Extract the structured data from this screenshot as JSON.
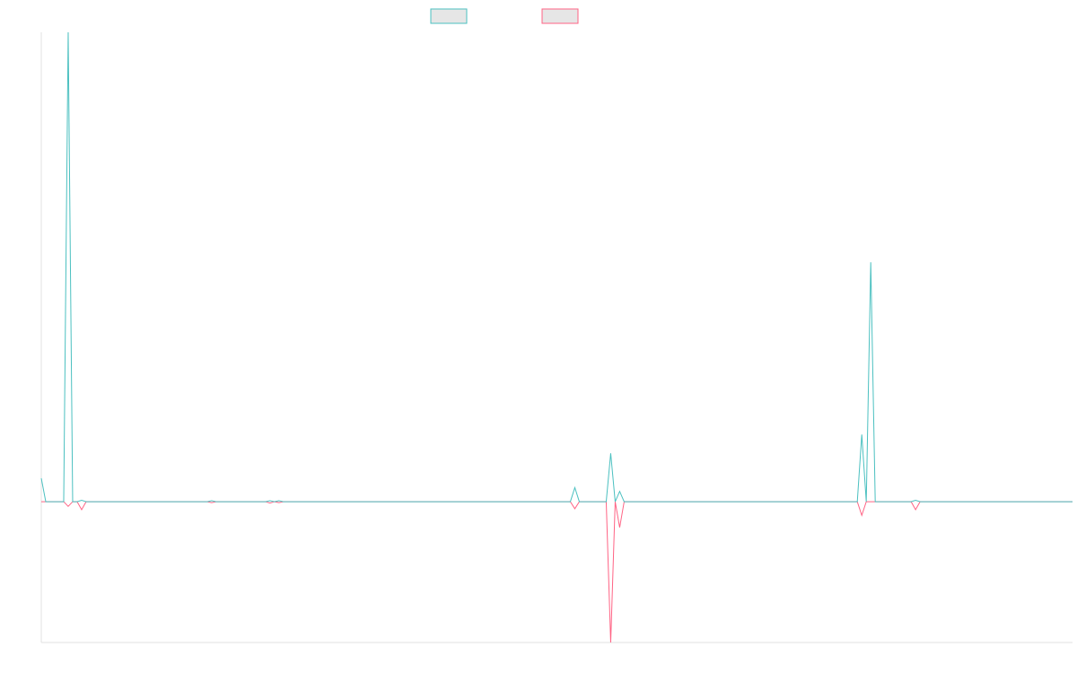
{
  "chart_data": {
    "type": "line",
    "x": [
      0,
      1,
      5,
      6,
      7,
      8,
      9,
      10,
      37,
      38,
      39,
      50,
      51,
      52,
      53,
      54,
      118,
      119,
      120,
      126,
      127,
      128,
      129,
      130,
      182,
      183,
      184,
      185,
      186,
      194,
      195,
      196,
      230
    ],
    "xlim": [
      0,
      230
    ],
    "ylim": [
      -30,
      100
    ],
    "series": [
      {
        "color": "#4bc0c0",
        "values": [
          5,
          0,
          0,
          100,
          0,
          0,
          0.3,
          0,
          0,
          0.2,
          0,
          0,
          0.2,
          0,
          0.2,
          0,
          0,
          3,
          0,
          0,
          10.3,
          0,
          2.2,
          0,
          0,
          14.3,
          0,
          51,
          0,
          0,
          0.3,
          0,
          0
        ]
      },
      {
        "color": "#ff6384",
        "values": [
          0,
          0,
          0,
          -1,
          0,
          0,
          -1.7,
          0,
          0,
          -0.2,
          0,
          0,
          -0.3,
          0,
          -0.2,
          0,
          0,
          -1.5,
          0,
          0,
          -30,
          0,
          -5.5,
          0,
          0,
          -2.9,
          0,
          0,
          0,
          0,
          -1.7,
          0,
          0
        ]
      }
    ]
  }
}
